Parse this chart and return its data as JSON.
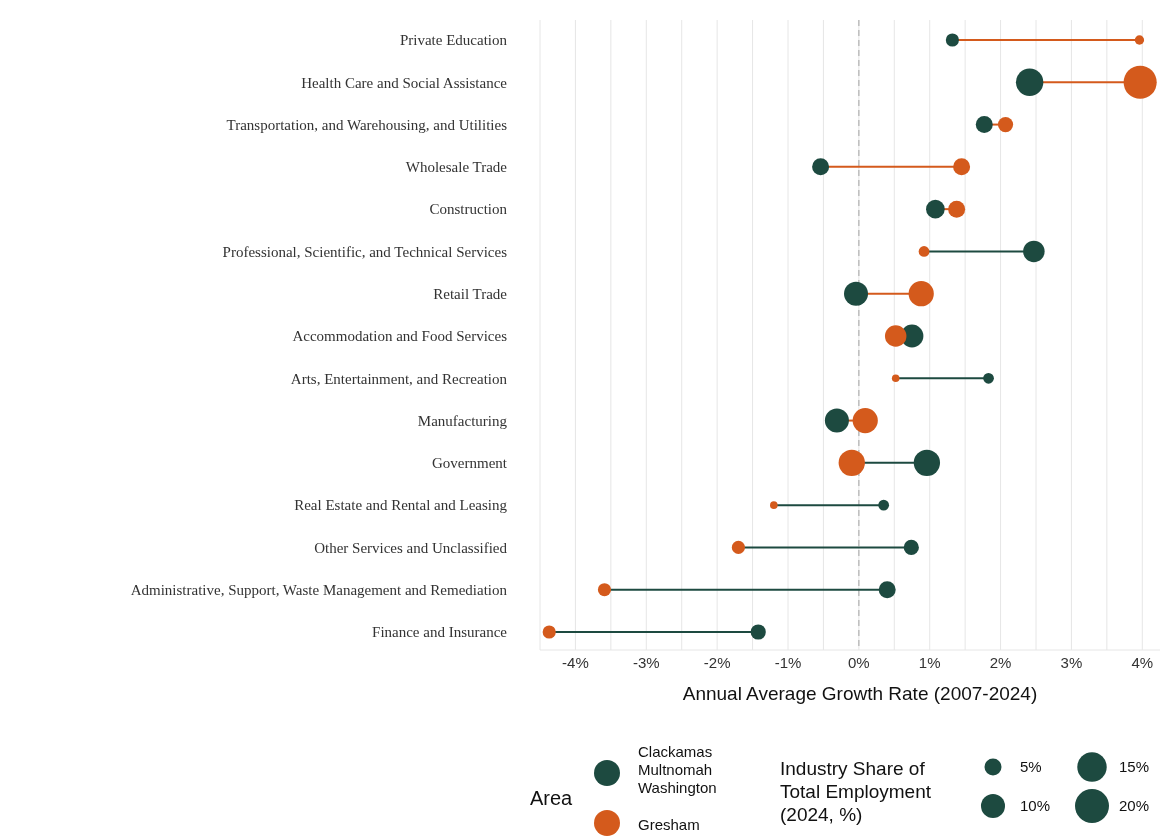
{
  "chart_data": {
    "type": "bubble",
    "orientation": "horizontal",
    "xlabel": "Annual Average Growth Rate (2007-2024)",
    "legend_title": "Area",
    "legend": "bottom",
    "grid": "x",
    "categories": [
      "Private Education",
      "Health Care and Social Assistance",
      "Transportation, and Warehousing, and Utilities",
      "Wholesale Trade",
      "Construction",
      "Professional, Scientific, and Technical Services",
      "Retail Trade",
      "Accommodation and Food Services",
      "Arts, Entertainment, and Recreation",
      "Manufacturing",
      "Government",
      "Real Estate and Rental and Leasing",
      "Other Services and Unclassified",
      "Administrative, Support, Waste Management and Remediation",
      "Finance and Insurance"
    ],
    "series": [
      {
        "name": "Clackamas Multnomah Washington",
        "color": "#1d4a40",
        "values": [
          1.32,
          2.41,
          1.77,
          -0.54,
          1.08,
          2.47,
          -0.04,
          0.75,
          1.83,
          -0.31,
          0.96,
          0.35,
          0.74,
          0.4,
          -1.42
        ],
        "sizes": [
          3,
          13,
          5,
          5,
          6,
          8,
          10,
          9,
          2,
          10,
          12,
          2,
          4,
          5,
          4
        ]
      },
      {
        "name": "Gresham",
        "color": "#d45a1c",
        "values": [
          3.96,
          3.97,
          2.07,
          1.45,
          1.38,
          0.92,
          0.88,
          0.52,
          0.52,
          0.09,
          -0.1,
          -1.2,
          -1.7,
          -3.59,
          -4.37
        ],
        "sizes": [
          1.5,
          19,
          4,
          5,
          5,
          2,
          11,
          8,
          1,
          11,
          12,
          1,
          3,
          3,
          3
        ]
      }
    ],
    "size_legend": [
      {
        "value": 5,
        "label": "5%"
      },
      {
        "value": 10,
        "label": "10%"
      },
      {
        "value": 15,
        "label": "15%"
      },
      {
        "value": 20,
        "label": "20%"
      }
    ],
    "xlim": [
      -4.5,
      4.25
    ],
    "xticks": [
      {
        "value": -4.5,
        "label": null
      },
      {
        "value": -4,
        "label": "-4%"
      },
      {
        "value": -3.5,
        "label": null
      },
      {
        "value": -3,
        "label": "-3%"
      },
      {
        "value": -2.5,
        "label": null
      },
      {
        "value": -2,
        "label": "-2%"
      },
      {
        "value": -1.5,
        "label": null
      },
      {
        "value": -1,
        "label": "-1%"
      },
      {
        "value": -0.5,
        "label": null
      },
      {
        "value": 0,
        "label": "0%"
      },
      {
        "value": 0.5,
        "label": null
      },
      {
        "value": 1,
        "label": "1%"
      },
      {
        "value": 1.5,
        "label": null
      },
      {
        "value": 2,
        "label": "2%"
      },
      {
        "value": 2.5,
        "label": null
      },
      {
        "value": 3,
        "label": "3%"
      },
      {
        "value": 3.5,
        "label": null
      },
      {
        "value": 4,
        "label": "4%"
      }
    ],
    "ref_lines": [
      {
        "axis": "x",
        "value": 0,
        "color": "#b0b0b0",
        "line_style": "dashed"
      }
    ],
    "annotations": [
      "Industry Share of Total Employment (2024, %)"
    ]
  }
}
